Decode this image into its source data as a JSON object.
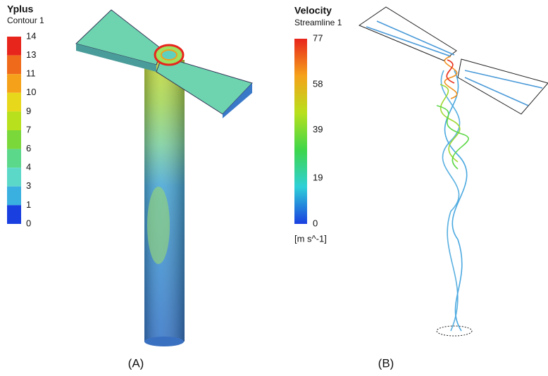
{
  "panels": [
    {
      "legend_title": "Yplus",
      "legend_subtitle": "Contour 1",
      "ticks": [
        14,
        13,
        11,
        10,
        9,
        7,
        6,
        4,
        3,
        1,
        0
      ],
      "caption": "(A)"
    },
    {
      "legend_title": "Velocity",
      "legend_subtitle": "Streamline 1",
      "ticks": [
        77,
        58,
        39,
        19,
        0
      ],
      "unit": "[m s^-1]",
      "caption": "(B)"
    }
  ]
}
